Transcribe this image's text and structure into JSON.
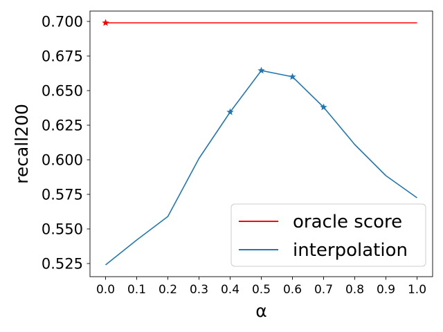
{
  "chart_data": {
    "type": "line",
    "xlabel": "α",
    "ylabel": "recall200",
    "xlim": [
      -0.05,
      1.05
    ],
    "ylim": [
      0.5155,
      0.7075
    ],
    "x_ticks": [
      "0.0",
      "0.1",
      "0.2",
      "0.3",
      "0.4",
      "0.5",
      "0.6",
      "0.7",
      "0.8",
      "0.9",
      "1.0"
    ],
    "y_ticks": [
      "0.525",
      "0.550",
      "0.575",
      "0.600",
      "0.625",
      "0.650",
      "0.675",
      "0.700"
    ],
    "grid": false,
    "legend_position": "lower-right",
    "series": [
      {
        "name": "oracle score",
        "color": "#ff0000",
        "x": [
          0.0,
          1.0
        ],
        "y": [
          0.699,
          0.699
        ],
        "star_markers": [
          {
            "x": 0.0,
            "y": 0.699
          }
        ]
      },
      {
        "name": "interpolation",
        "color": "#1f77b4",
        "x": [
          0.0,
          0.1,
          0.2,
          0.3,
          0.4,
          0.5,
          0.6,
          0.7,
          0.8,
          0.9,
          1.0
        ],
        "y": [
          0.524,
          0.542,
          0.559,
          0.601,
          0.6345,
          0.6645,
          0.66,
          0.638,
          0.611,
          0.5885,
          0.5725
        ],
        "star_markers": [
          {
            "x": 0.4,
            "y": 0.6345
          },
          {
            "x": 0.5,
            "y": 0.6645
          },
          {
            "x": 0.6,
            "y": 0.66
          },
          {
            "x": 0.7,
            "y": 0.638
          }
        ]
      }
    ]
  }
}
